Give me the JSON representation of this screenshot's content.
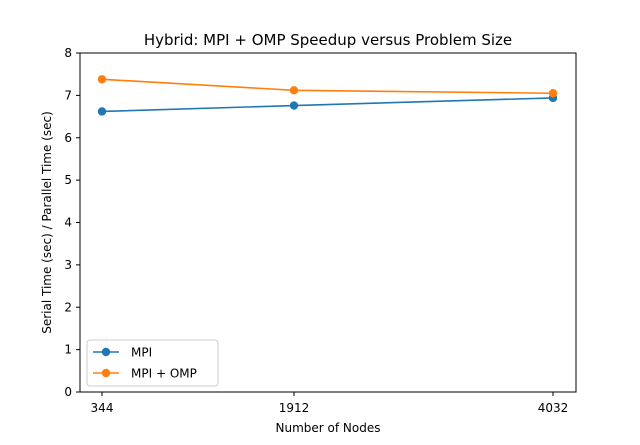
{
  "chart_data": {
    "type": "line",
    "title": "Hybrid: MPI + OMP Speedup versus Problem Size",
    "xlabel": "Number of Nodes",
    "ylabel": "Serial Time (sec) / Parallel Time (sec)",
    "x": [
      344,
      1912,
      4032
    ],
    "x_tick_labels": [
      "344",
      "1912",
      "4032"
    ],
    "ylim": [
      0,
      8
    ],
    "y_ticks": [
      0,
      1,
      2,
      3,
      4,
      5,
      6,
      7,
      8
    ],
    "series": [
      {
        "name": "MPI",
        "color": "#1f77b4",
        "values": [
          6.62,
          6.76,
          6.94
        ]
      },
      {
        "name": "MPI + OMP",
        "color": "#ff7f0e",
        "values": [
          7.38,
          7.12,
          7.05
        ]
      }
    ],
    "grid": false,
    "legend_position": "lower-left"
  }
}
